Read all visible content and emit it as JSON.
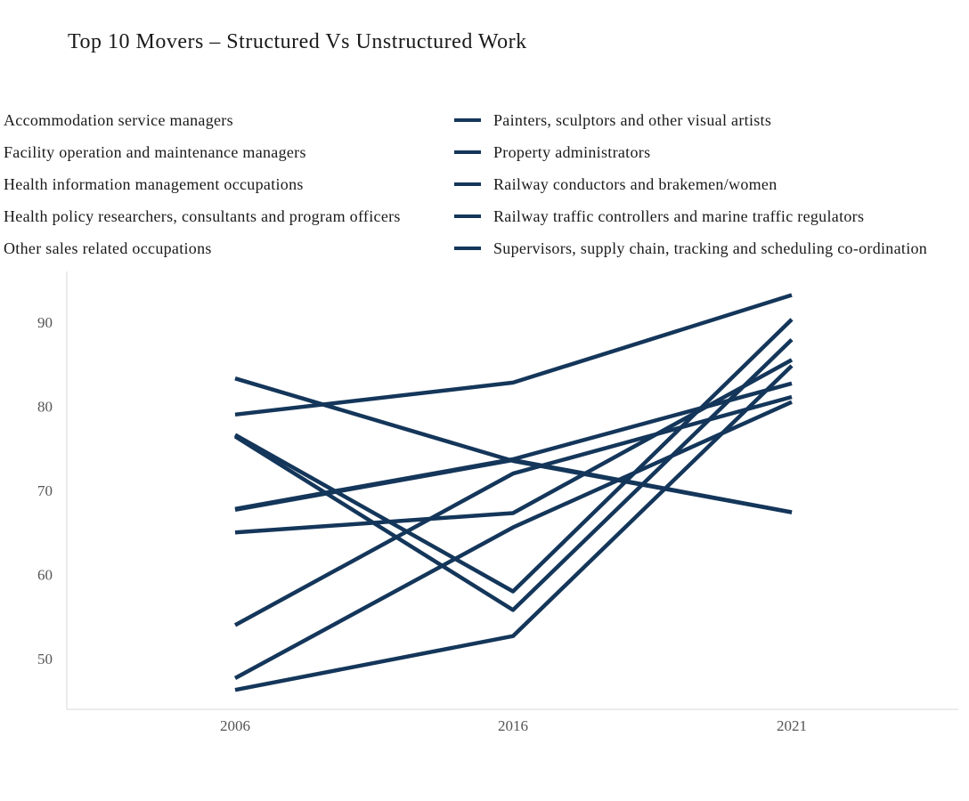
{
  "chart_data": {
    "type": "line",
    "title": "Top 10 Movers – Structured Vs Unstructured Work",
    "xlabel": "",
    "ylabel": "",
    "x": [
      "2006",
      "2016",
      "2021"
    ],
    "ylim": [
      44,
      96
    ],
    "yticks": [
      50,
      60,
      70,
      80,
      90
    ],
    "grid": false,
    "legend_position": "top",
    "line_color": "#14365a",
    "series": [
      {
        "name": "Accommodation service managers",
        "values": [
          79.0,
          82.8,
          93.2
        ]
      },
      {
        "name": "Facility operation and maintenance managers",
        "values": [
          83.3,
          73.5,
          67.4
        ]
      },
      {
        "name": "Health information management occupations",
        "values": [
          76.6,
          58.0,
          90.3
        ]
      },
      {
        "name": "Health policy researchers, consultants and program officers",
        "values": [
          76.4,
          55.8,
          87.9
        ]
      },
      {
        "name": "Other sales related occupations",
        "values": [
          67.8,
          73.7,
          82.7
        ]
      },
      {
        "name": "Painters, sculptors and other visual artists",
        "values": [
          65.0,
          67.3,
          85.5
        ]
      },
      {
        "name": "Property administrators",
        "values": [
          54.0,
          72.0,
          81.1
        ]
      },
      {
        "name": "Railway conductors and brakemen/women",
        "values": [
          47.7,
          65.6,
          80.5
        ]
      },
      {
        "name": "Railway traffic controllers and marine traffic regulators",
        "values": [
          46.3,
          52.7,
          84.8
        ]
      },
      {
        "name": "Supervisors, supply chain, tracking and scheduling co-ordination",
        "values": [
          67.7,
          73.6,
          67.4
        ]
      }
    ]
  }
}
